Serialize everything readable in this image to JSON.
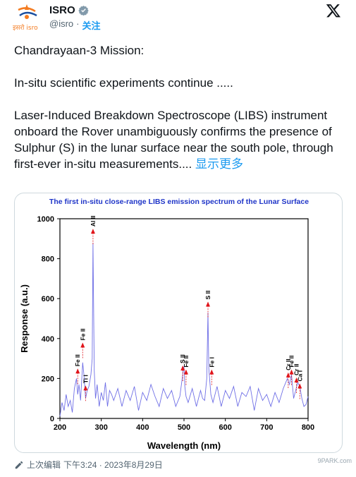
{
  "account": {
    "name": "ISRO",
    "handle": "@isro",
    "separator": "·",
    "follow_label": "关注",
    "avatar_text": "इसरो isro"
  },
  "tweet": {
    "line1": "Chandrayaan-3 Mission:",
    "line2": "In-situ scientific experiments continue .....",
    "line3": "Laser-Induced Breakdown Spectroscope (LIBS) instrument onboard the Rover unambiguously confirms the presence of Sulphur (S) in the lunar surface near the south pole, through first-ever in-situ measurements....",
    "show_more": "显示更多"
  },
  "footer": {
    "edited_label": "上次编辑",
    "timestamp": "下午3:24 · 2023年8月29日"
  },
  "watermark": "9PARK.com",
  "colors": {
    "accent": "#1d9bf0",
    "chart_line": "#6f6fe6",
    "chart_title": "#1f35c8",
    "arrow": "#e0141a"
  },
  "chart_data": {
    "type": "line",
    "title": "The first in-situ close-range LIBS emission spectrum of the Lunar Surface",
    "xlabel": "Wavelength (nm)",
    "ylabel": "Response (a.u.)",
    "xlim": [
      200,
      800
    ],
    "ylim": [
      0,
      1000
    ],
    "xticks": [
      200,
      300,
      400,
      500,
      600,
      700,
      800
    ],
    "yticks": [
      0,
      200,
      400,
      600,
      800,
      1000
    ],
    "series": [
      {
        "x": [
          200,
          205,
          210,
          215,
          220,
          225,
          230,
          235,
          240,
          243,
          246,
          250,
          255,
          258,
          262,
          266,
          270,
          275,
          278,
          280,
          283,
          286,
          290,
          295,
          300,
          305,
          310,
          315,
          320,
          325,
          330,
          340,
          350,
          360,
          370,
          380,
          390,
          400,
          410,
          420,
          430,
          440,
          450,
          460,
          470,
          480,
          490,
          495,
          498,
          500,
          502,
          505,
          510,
          520,
          530,
          540,
          545,
          550,
          555,
          558,
          560,
          565,
          570,
          580,
          590,
          600,
          610,
          620,
          630,
          640,
          650,
          660,
          670,
          680,
          690,
          700,
          710,
          720,
          730,
          740,
          750,
          755,
          760,
          765,
          770,
          775,
          780,
          785,
          790,
          795,
          800
        ],
        "y": [
          10,
          80,
          40,
          120,
          60,
          90,
          30,
          150,
          200,
          120,
          170,
          90,
          280,
          220,
          100,
          140,
          160,
          220,
          300,
          880,
          240,
          100,
          170,
          60,
          130,
          90,
          180,
          60,
          140,
          120,
          90,
          150,
          60,
          140,
          90,
          160,
          40,
          130,
          90,
          170,
          110,
          60,
          150,
          100,
          140,
          60,
          110,
          190,
          240,
          260,
          160,
          110,
          80,
          150,
          60,
          140,
          100,
          90,
          200,
          530,
          250,
          120,
          80,
          160,
          60,
          140,
          100,
          160,
          60,
          130,
          110,
          160,
          40,
          150,
          90,
          120,
          60,
          130,
          80,
          150,
          200,
          170,
          220,
          100,
          140,
          180,
          160,
          100,
          60,
          70,
          110
        ]
      }
    ],
    "annotations": [
      {
        "label": "Fe II",
        "x": 243,
        "y": 250
      },
      {
        "label": "Fe II",
        "x": 255,
        "y": 380
      },
      {
        "label": "Ti I",
        "x": 262,
        "y": 165
      },
      {
        "label": "Al II",
        "x": 280,
        "y": 950
      },
      {
        "label": "S II",
        "x": 497,
        "y": 265
      },
      {
        "label": "Fe II",
        "x": 505,
        "y": 245
      },
      {
        "label": "S II",
        "x": 558,
        "y": 585
      },
      {
        "label": "Fe I",
        "x": 567,
        "y": 245
      },
      {
        "label": "Cr II",
        "x": 752,
        "y": 230
      },
      {
        "label": "Fe II",
        "x": 760,
        "y": 245
      },
      {
        "label": "Cr II",
        "x": 772,
        "y": 205
      },
      {
        "label": "Ca I",
        "x": 780,
        "y": 175
      }
    ]
  }
}
